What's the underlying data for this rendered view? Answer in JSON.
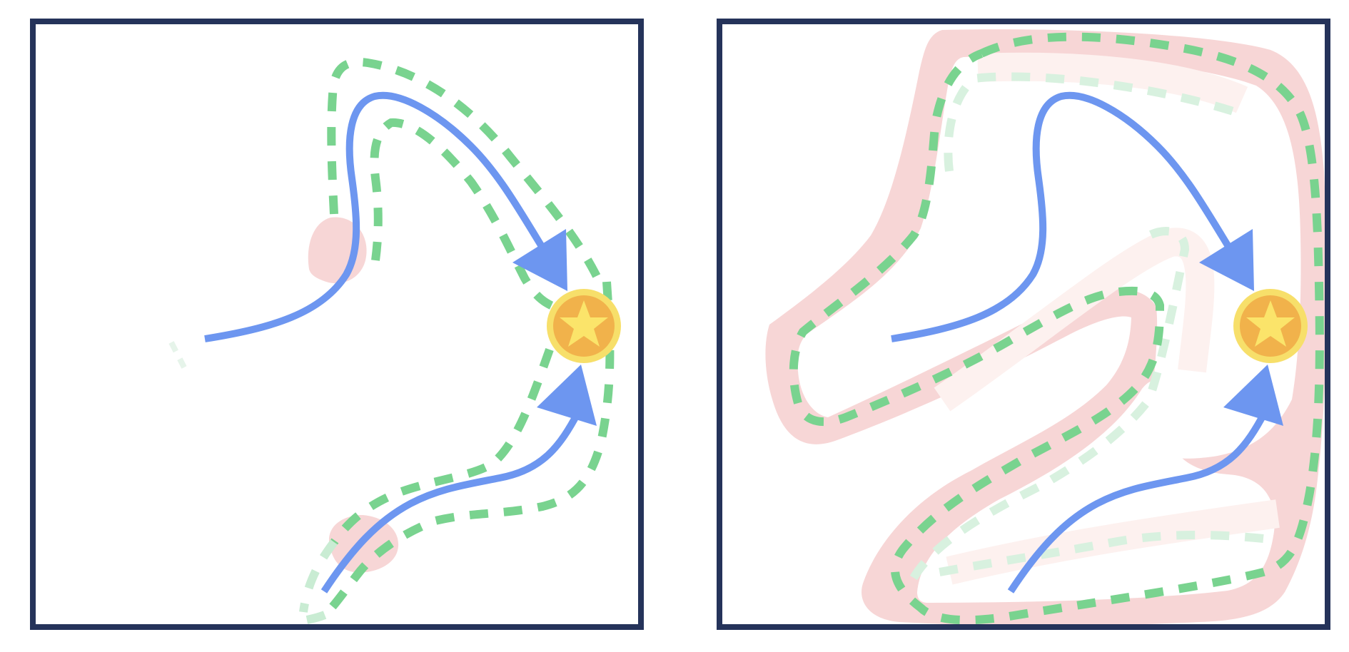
{
  "colors": {
    "frame": "#25335a",
    "path": "#6d96f0",
    "boundary": "#79d38f",
    "boundary_faint": "#c9ecd3",
    "region": "#f7d6d6",
    "region_faint": "#fdf1ef",
    "goal_outer": "#f7df6a",
    "goal_inner": "#f1b24b",
    "goal_star": "#fbe46a"
  },
  "icons": {
    "goal": "star-coin-icon",
    "direction": "arrowhead-icon"
  },
  "panels": [
    {
      "name": "left",
      "boundary_style": "narrow-dashed-corridors",
      "region_style": "small-blobs"
    },
    {
      "name": "right",
      "boundary_style": "wide-dashed-envelope",
      "region_style": "wide-envelope"
    }
  ]
}
